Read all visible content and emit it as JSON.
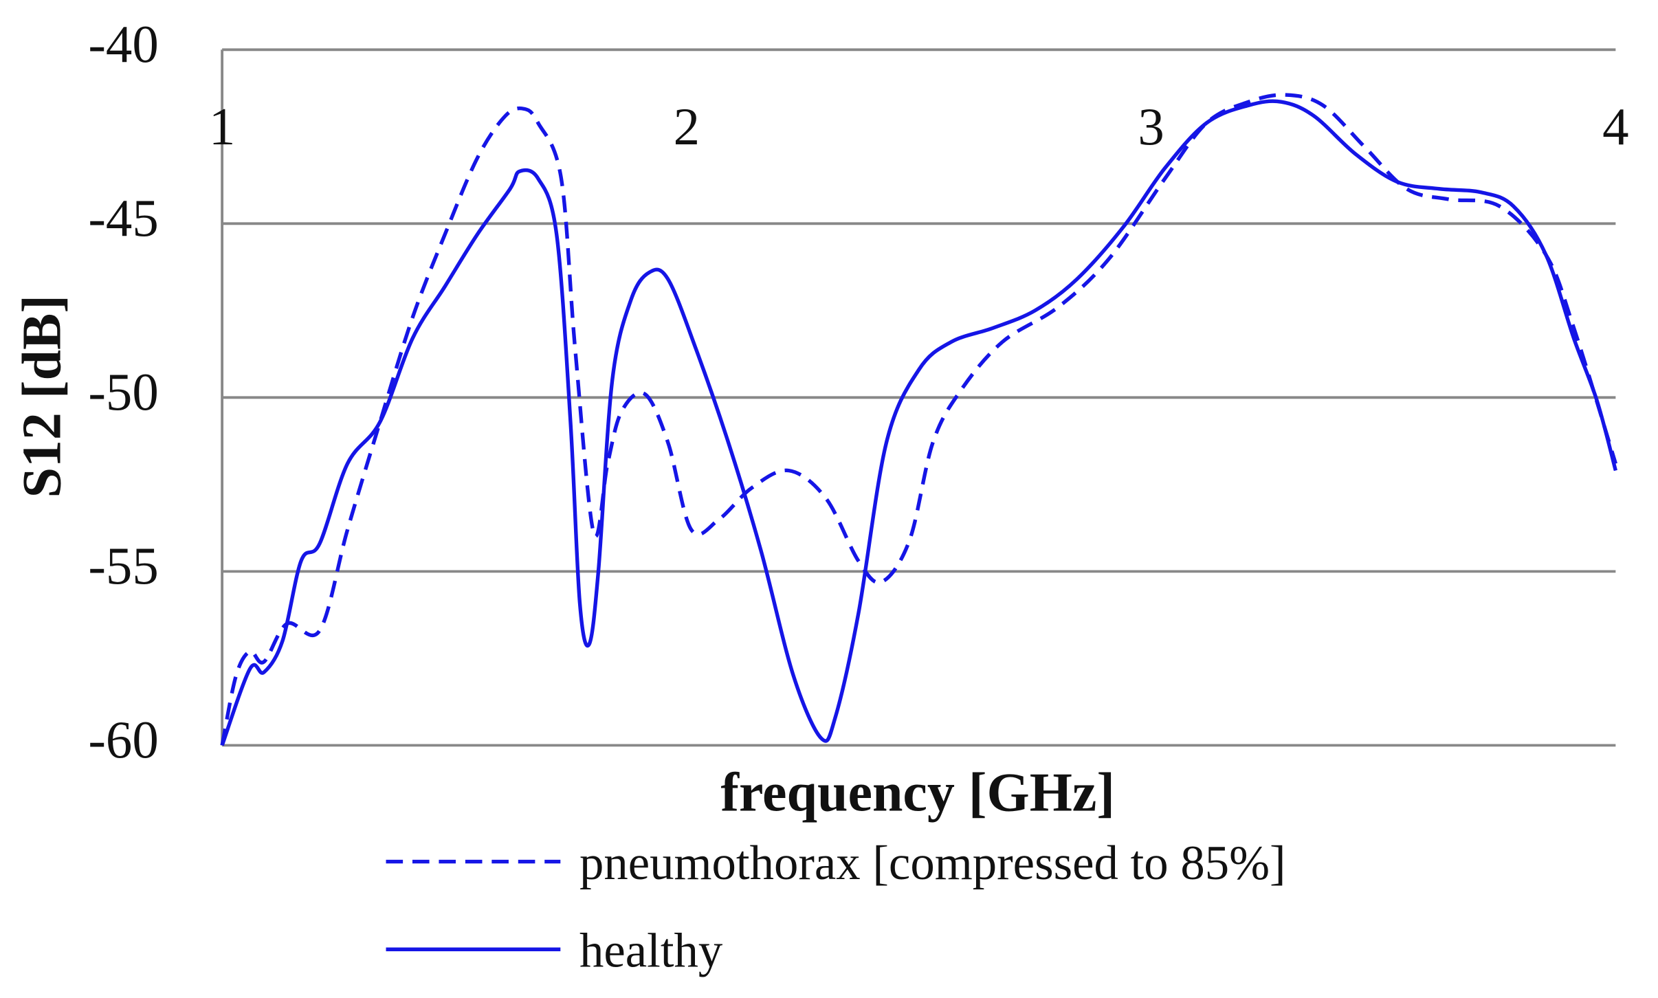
{
  "chart_data": {
    "type": "line",
    "xlabel": "frequency [GHz]",
    "ylabel": "S12 [dB]",
    "xlim": [
      1,
      4
    ],
    "xticks": [
      1,
      2,
      3,
      4
    ],
    "ylim": [
      -60,
      -40
    ],
    "yticks": [
      -40,
      -45,
      -50,
      -55,
      -60
    ],
    "grid": true,
    "legend": "bottom",
    "series": [
      {
        "name": "pneumothorax [compressed to 85%]",
        "color": "#1515e6",
        "dash": "dashed",
        "x": [
          1.0,
          1.03,
          1.06,
          1.09,
          1.14,
          1.21,
          1.27,
          1.34,
          1.41,
          1.48,
          1.55,
          1.61,
          1.65,
          1.68,
          1.73,
          1.76,
          1.8,
          1.83,
          1.86,
          1.91,
          1.96,
          2.01,
          2.07,
          2.14,
          2.22,
          2.3,
          2.37,
          2.42,
          2.48,
          2.53,
          2.59,
          2.68,
          2.8,
          2.91,
          3.03,
          3.12,
          3.21,
          3.29,
          3.37,
          3.46,
          3.55,
          3.64,
          3.75,
          3.85,
          3.91,
          4.0
        ],
        "values": [
          -60,
          -58.0,
          -57.3,
          -57.6,
          -56.5,
          -56.7,
          -53.8,
          -50.7,
          -47.7,
          -45.3,
          -43.1,
          -41.9,
          -41.7,
          -42.1,
          -43.7,
          -48.6,
          -53.9,
          -51.9,
          -50.4,
          -49.9,
          -51.3,
          -53.8,
          -53.5,
          -52.6,
          -52.1,
          -52.9,
          -54.7,
          -55.3,
          -54.1,
          -51.3,
          -49.8,
          -48.4,
          -47.4,
          -46.0,
          -43.7,
          -42.1,
          -41.5,
          -41.3,
          -41.6,
          -42.8,
          -44.0,
          -44.3,
          -44.5,
          -45.9,
          -48.0,
          -51.9
        ]
      },
      {
        "name": "healthy",
        "color": "#1515e6",
        "dash": "solid",
        "x": [
          1.0,
          1.06,
          1.09,
          1.13,
          1.17,
          1.21,
          1.27,
          1.34,
          1.41,
          1.48,
          1.55,
          1.62,
          1.64,
          1.68,
          1.72,
          1.75,
          1.77,
          1.79,
          1.81,
          1.84,
          1.88,
          1.92,
          1.96,
          2.02,
          2.09,
          2.16,
          2.23,
          2.29,
          2.32,
          2.37,
          2.43,
          2.5,
          2.57,
          2.66,
          2.75,
          2.84,
          2.94,
          3.03,
          3.12,
          3.21,
          3.28,
          3.35,
          3.44,
          3.53,
          3.62,
          3.71,
          3.78,
          3.85,
          3.91,
          3.96,
          4.0
        ],
        "values": [
          -60,
          -57.8,
          -57.9,
          -57.0,
          -54.7,
          -54.2,
          -51.9,
          -50.7,
          -48.3,
          -46.8,
          -45.3,
          -44.0,
          -43.5,
          -43.7,
          -45.3,
          -50.7,
          -55.9,
          -57.1,
          -55.0,
          -49.5,
          -47.2,
          -46.4,
          -46.6,
          -48.6,
          -51.3,
          -54.4,
          -58.0,
          -59.8,
          -59.2,
          -56.2,
          -51.3,
          -49.2,
          -48.4,
          -48.0,
          -47.5,
          -46.6,
          -45.1,
          -43.4,
          -42.1,
          -41.6,
          -41.5,
          -41.9,
          -43.0,
          -43.8,
          -44.0,
          -44.1,
          -44.5,
          -45.9,
          -48.3,
          -50.1,
          -52.1
        ]
      }
    ]
  }
}
